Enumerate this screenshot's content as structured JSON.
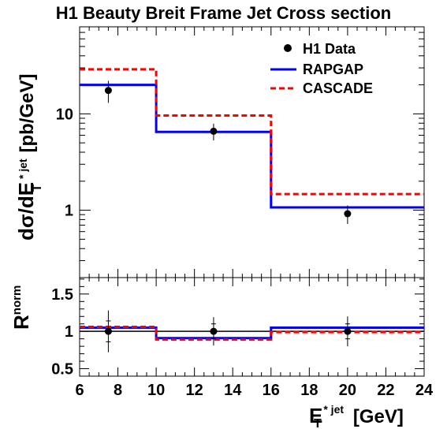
{
  "chart_data": [
    {
      "type": "line",
      "title": "H1 Beauty Breit Frame Jet Cross section",
      "ylabel_main": "dσ/dE",
      "ylabel_super": "* jet",
      "ylabel_sub": "T",
      "ylabel_unit": "[pb/GeV]",
      "yscale": "log",
      "ylim": [
        0.2,
        80
      ],
      "xlim": [
        6,
        24
      ],
      "y_tick_labels": [
        "1",
        "10"
      ],
      "legend_position": "top-right",
      "series": [
        {
          "name": "H1 Data",
          "style": "points",
          "color": "#000000",
          "x": [
            7.5,
            13,
            20
          ],
          "y": [
            17.5,
            6.6,
            0.92
          ],
          "y_err": [
            4.5,
            1.3,
            0.2
          ],
          "x_err": [
            1.5,
            3,
            4
          ]
        },
        {
          "name": "RAPGAP",
          "style": "step",
          "color": "#0000ff",
          "bin_edges": [
            6,
            10,
            16,
            24
          ],
          "values": [
            20,
            6.5,
            1.07
          ]
        },
        {
          "name": "CASCADE",
          "style": "step-dashed",
          "color": "#ff0000",
          "bin_edges": [
            6,
            10,
            16,
            24
          ],
          "values": [
            29,
            9.6,
            1.47
          ]
        }
      ]
    },
    {
      "type": "line",
      "ylabel_main": "R",
      "ylabel_super": "norm",
      "xlabel_main": "E",
      "xlabel_super": "* jet",
      "xlabel_sub": "T",
      "xlabel_unit": "[GeV]",
      "xlim": [
        6,
        24
      ],
      "ylim": [
        0.4,
        1.72
      ],
      "x_ticks": [
        6,
        8,
        10,
        12,
        14,
        16,
        18,
        20,
        22,
        24
      ],
      "x_tick_labels": [
        "6",
        "8",
        "10",
        "12",
        "14",
        "16",
        "18",
        "20",
        "22",
        "24"
      ],
      "y_ticks": [
        0.5,
        1,
        1.5
      ],
      "y_tick_labels": [
        "0.5",
        "1",
        "1.5"
      ],
      "reference_line": 1,
      "series": [
        {
          "name": "H1 Data",
          "style": "points",
          "color": "#000000",
          "x": [
            7.5,
            13,
            20
          ],
          "y": [
            1.0,
            1.0,
            1.0
          ],
          "y_err_total": [
            0.28,
            0.19,
            0.2
          ],
          "y_err_inner": [
            0.14,
            0.1,
            0.1
          ],
          "x_err": [
            1.5,
            3,
            4
          ]
        },
        {
          "name": "RAPGAP",
          "style": "step",
          "color": "#0000ff",
          "bin_edges": [
            6,
            10,
            16,
            24
          ],
          "values": [
            1.05,
            0.91,
            1.05
          ]
        },
        {
          "name": "CASCADE",
          "style": "step-dashed",
          "color": "#ff0000",
          "bin_edges": [
            6,
            10,
            16,
            24
          ],
          "values": [
            1.06,
            0.89,
            0.99
          ]
        }
      ]
    }
  ]
}
